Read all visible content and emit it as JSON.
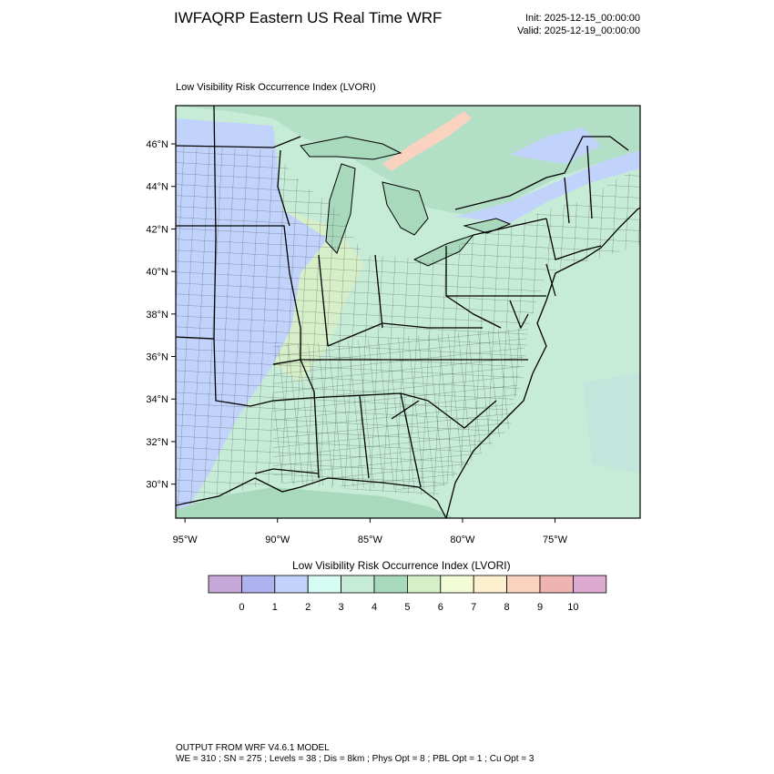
{
  "header": {
    "title": "IWFAQRP Eastern US Real Time WRF",
    "init": "Init: 2025-12-15_00:00:00",
    "valid": "Valid: 2025-12-19_00:00:00"
  },
  "map": {
    "subtitle": "Low Visibility Risk Occurrence Index   (LVORI)",
    "lat_labels": [
      "46°N",
      "44°N",
      "42°N",
      "40°N",
      "38°N",
      "36°N",
      "34°N",
      "32°N",
      "30°N"
    ],
    "lon_labels": [
      "95°W",
      "90°W",
      "85°W",
      "80°W",
      "75°W"
    ],
    "lat_values": [
      46,
      44,
      42,
      40,
      38,
      36,
      34,
      32,
      30
    ],
    "lon_values": [
      -95,
      -90,
      -85,
      -80,
      -75
    ],
    "lat_range": [
      28.4,
      47.8
    ],
    "lon_range": [
      -95.5,
      -70.4
    ]
  },
  "colorbar": {
    "title": "Low Visibility Risk Occurrence Index  (LVORI)",
    "labels": [
      "0",
      "1",
      "2",
      "3",
      "4",
      "5",
      "6",
      "7",
      "8",
      "9",
      "10"
    ],
    "colors": [
      "#c7a8d9",
      "#aeb3ef",
      "#c2d3fb",
      "#d6fbf2",
      "#c6ecd8",
      "#a9d9bd",
      "#d6efc9",
      "#f2fcd6",
      "#fdf0cf",
      "#fad2c0",
      "#efb3b0",
      "#dcaad1"
    ]
  },
  "footer": {
    "line1": "OUTPUT FROM WRF V4.6.1 MODEL",
    "line2": "WE = 310 ; SN = 275 ; Levels = 38 ; Dis = 8km ; Phys Opt = 8 ; PBL Opt = 1 ; Cu Opt = 3"
  }
}
